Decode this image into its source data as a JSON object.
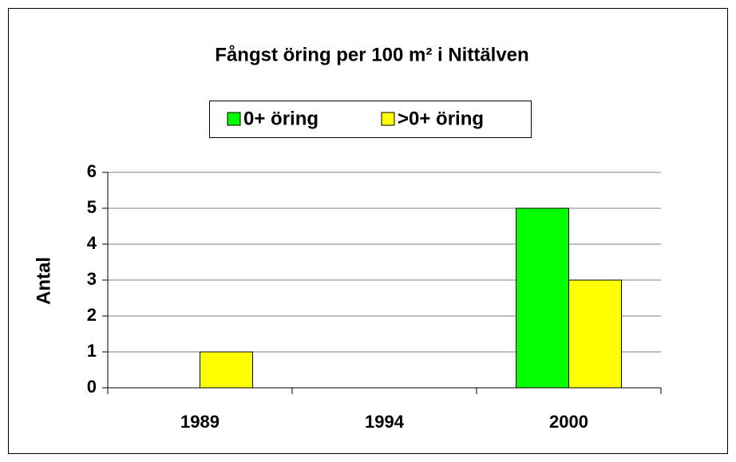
{
  "chart_data": {
    "type": "bar",
    "title": "Fångst öring per 100 m² i Nittälven",
    "y_label": "Antal",
    "categories": [
      "1989",
      "1994",
      "2000"
    ],
    "series": [
      {
        "name": "0+ öring",
        "color": "#00ff00",
        "values": [
          0,
          0,
          5
        ]
      },
      {
        "name": ">0+ öring",
        "color": "#ffff00",
        "values": [
          1,
          0,
          3
        ]
      }
    ],
    "ylim": [
      0,
      6
    ],
    "yticks": [
      0,
      1,
      2,
      3,
      4,
      5,
      6
    ],
    "grid": true,
    "legend": "top"
  }
}
